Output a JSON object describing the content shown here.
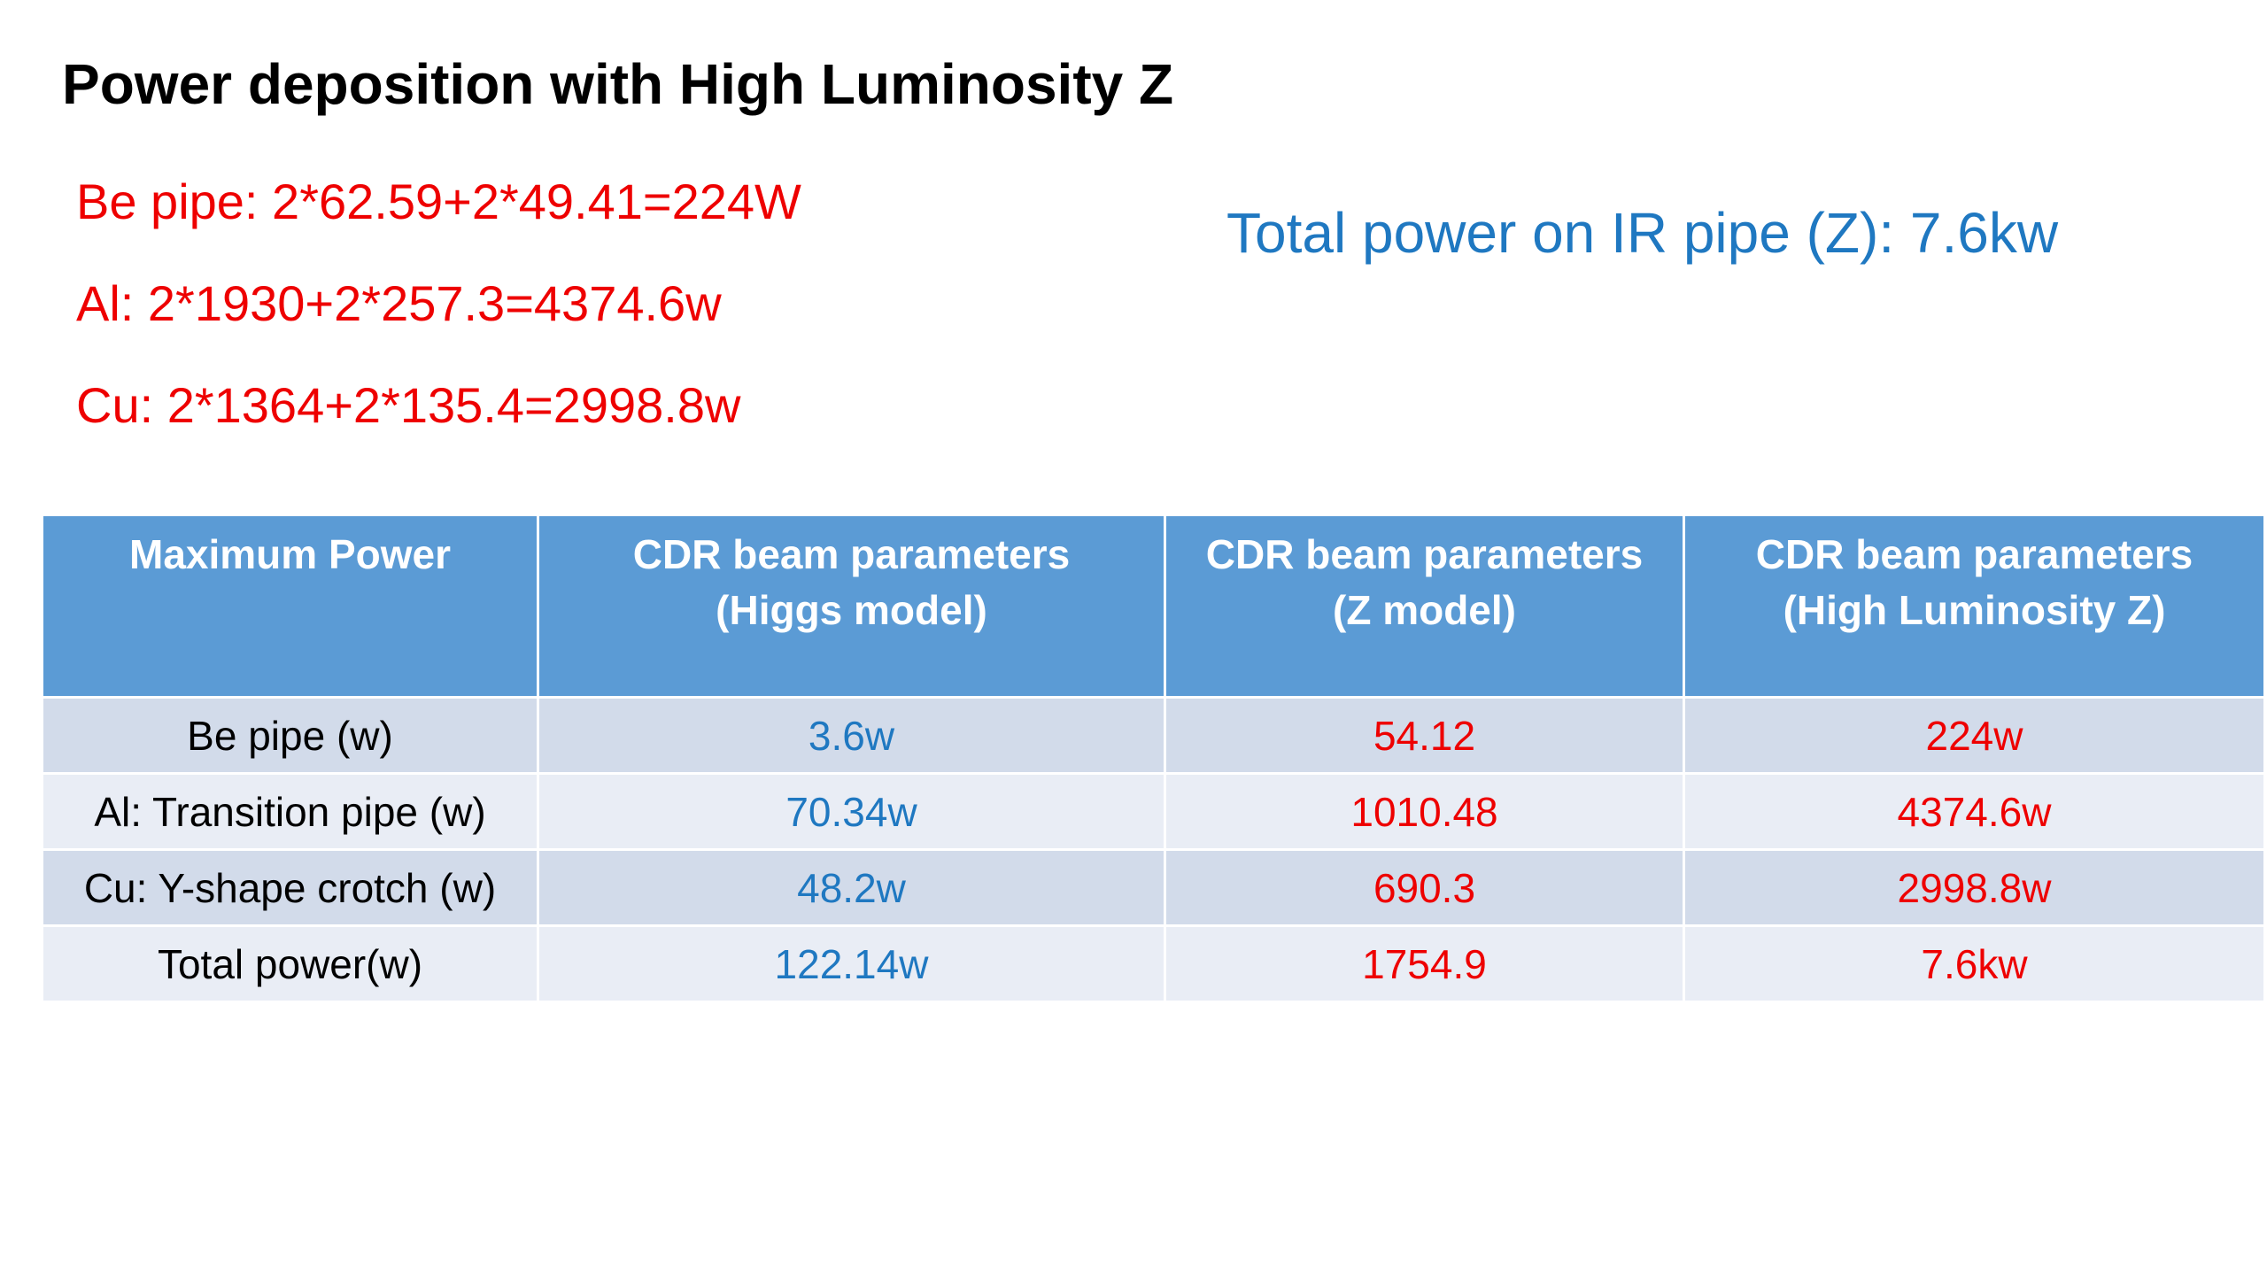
{
  "title": "Power deposition with High Luminosity Z",
  "calculations": [
    "Be pipe: 2*62.59+2*49.41=224W",
    "Al: 2*1930+2*257.3=4374.6w",
    "Cu: 2*1364+2*135.4=2998.8w"
  ],
  "total_note": "Total power on IR pipe (Z): 7.6kw",
  "colors": {
    "header_bg": "#5b9bd5",
    "row_odd_bg": "#d2dbea",
    "row_even_bg": "#e9edf5",
    "red_text": "#ee0000",
    "blue_text": "#1f78c1"
  },
  "table": {
    "headers": [
      [
        "Maximum Power"
      ],
      [
        "CDR  beam parameters",
        "(Higgs model)"
      ],
      [
        "CDR  beam parameters",
        "(Z model)"
      ],
      [
        "CDR  beam parameters",
        "(High Luminosity Z)"
      ]
    ],
    "rows": [
      [
        "Be pipe (w)",
        "3.6w",
        "54.12",
        "224w"
      ],
      [
        "Al: Transition pipe (w)",
        "70.34w",
        "1010.48",
        "4374.6w"
      ],
      [
        "Cu: Y-shape crotch (w)",
        "48.2w",
        "690.3",
        "2998.8w"
      ],
      [
        "Total power(w)",
        "122.14w",
        "1754.9",
        "7.6kw"
      ]
    ]
  }
}
